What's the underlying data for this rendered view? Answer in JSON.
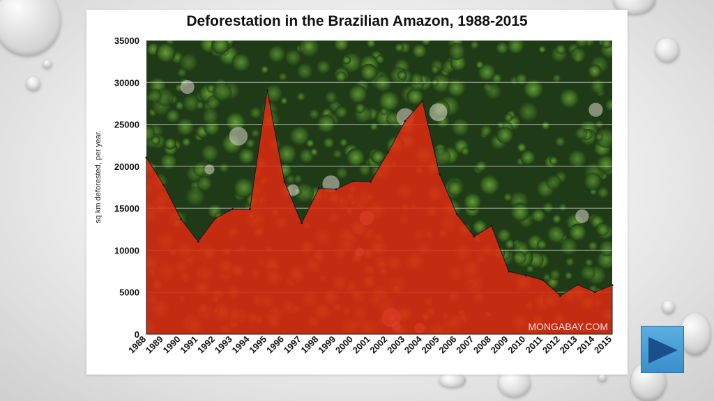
{
  "chart_data": {
    "type": "area",
    "title": "Deforestation in the Brazilian Amazon, 1988-2015",
    "ylabel": "sq km deforested, per year.",
    "xlabel": "",
    "x": [
      "1988",
      "1989",
      "1990",
      "1991",
      "1992",
      "1993",
      "1994",
      "1995",
      "1996",
      "1997",
      "1998",
      "1999",
      "2000",
      "2001",
      "2002",
      "2003",
      "2004",
      "2005",
      "2006",
      "2007",
      "2008",
      "2009",
      "2010",
      "2011",
      "2012",
      "2013",
      "2014",
      "2015"
    ],
    "values": [
      21050,
      17770,
      13730,
      11030,
      13790,
      14900,
      14900,
      29060,
      18160,
      13230,
      17380,
      17260,
      18230,
      18160,
      21650,
      25400,
      27770,
      19010,
      14290,
      11650,
      12910,
      7460,
      7000,
      6420,
      4570,
      5890,
      5010,
      5830
    ],
    "ylim": [
      0,
      35000
    ],
    "yticks": [
      0,
      5000,
      10000,
      15000,
      20000,
      25000,
      30000,
      35000
    ],
    "grid": true,
    "fill_color": "#e02a10",
    "background": "aerial photo of rainforest canopy",
    "watermark": "MONGABAY.COM"
  },
  "nav": {
    "next_icon": "play-triangle-icon",
    "button_color": "#3a8fcc"
  }
}
